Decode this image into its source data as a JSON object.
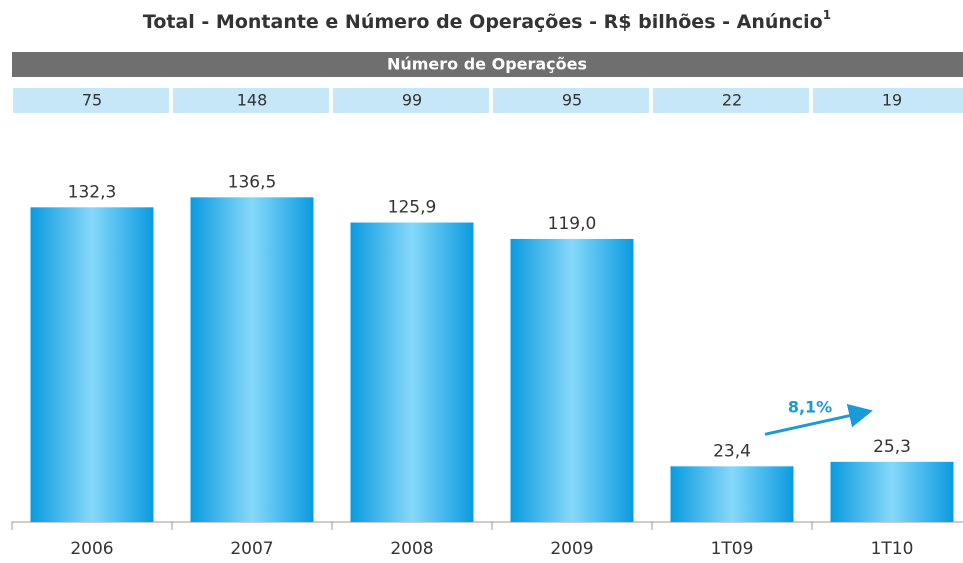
{
  "chart_data": {
    "type": "bar",
    "title": "Total - Montante e Número de Operações - R$ bilhões - Anúncio",
    "title_footnote": "1",
    "table": {
      "header": "Número de Operações",
      "values": [
        75,
        148,
        99,
        95,
        22,
        19
      ]
    },
    "categories": [
      "2006",
      "2007",
      "2008",
      "2009",
      "1T09",
      "1T10"
    ],
    "values": [
      132.3,
      136.5,
      125.9,
      119.0,
      23.4,
      25.3
    ],
    "value_labels": [
      "132,3",
      "136,5",
      "125,9",
      "119,0",
      "23,4",
      "25,3"
    ],
    "color": "#0a9be0",
    "ylim": [
      0,
      140
    ],
    "annotation": "8,1%",
    "annotation_color": "#1a9ad6"
  }
}
